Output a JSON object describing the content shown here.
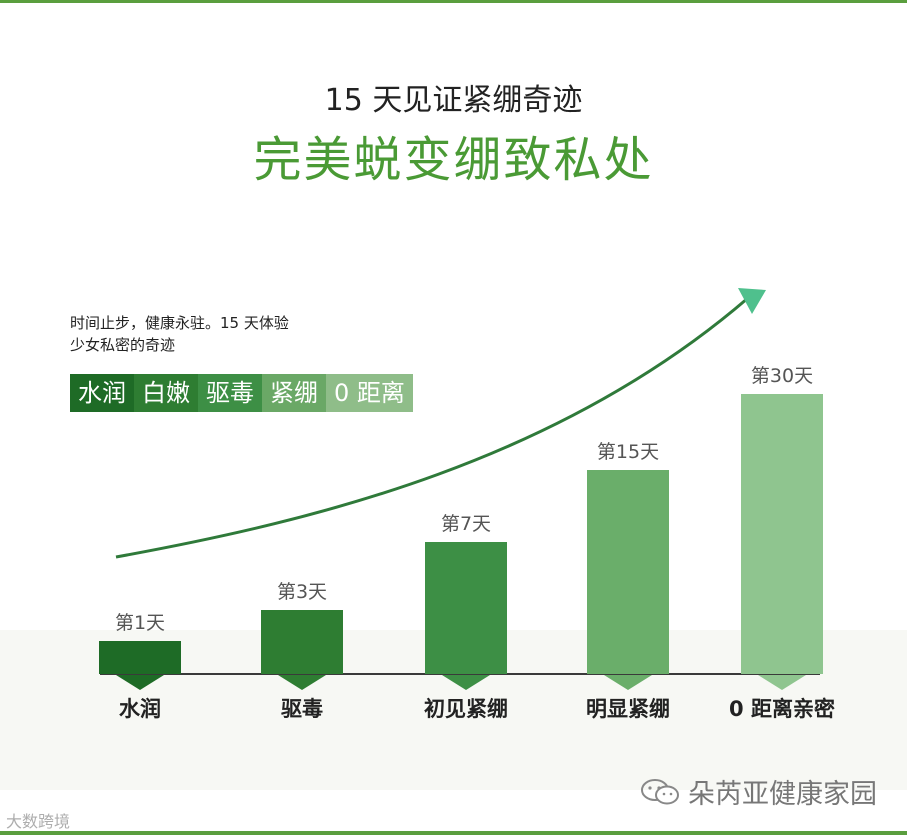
{
  "header": {
    "title_line1": "15 天见证紧绷奇迹",
    "title_line2": "完美蜕变绷致私处"
  },
  "intro_text": {
    "line1": "时间止步，健康永驻。15 天体验",
    "line2": "少女私密的奇迹"
  },
  "tags": [
    {
      "label": "水润",
      "color": "#1e6b26"
    },
    {
      "label": "白嫩",
      "color": "#2e7d32"
    },
    {
      "label": "驱毒",
      "color": "#3d8f45"
    },
    {
      "label": "紧绷",
      "color": "#6aa866"
    },
    {
      "label": "0 距离",
      "color": "#8fbd89"
    }
  ],
  "chart_data": {
    "type": "bar",
    "categories": [
      "水润",
      "驱毒",
      "初见紧绷",
      "明显紧绷",
      "0 距离亲密"
    ],
    "data_labels": [
      "第1天",
      "第3天",
      "第7天",
      "第15天",
      "第30天"
    ],
    "values": [
      1,
      3,
      7,
      15,
      30
    ],
    "bar_colors": [
      "#1e6b26",
      "#2e7d32",
      "#3d8f45",
      "#6aae6a",
      "#8fc58f"
    ],
    "trend_arrow": true,
    "trend_color": "#2f7a3a",
    "arrow_head_color": "#4fc08d"
  },
  "footer": {
    "watermark": "朵芮亚健康家园",
    "logo_text": "大数跨境"
  }
}
